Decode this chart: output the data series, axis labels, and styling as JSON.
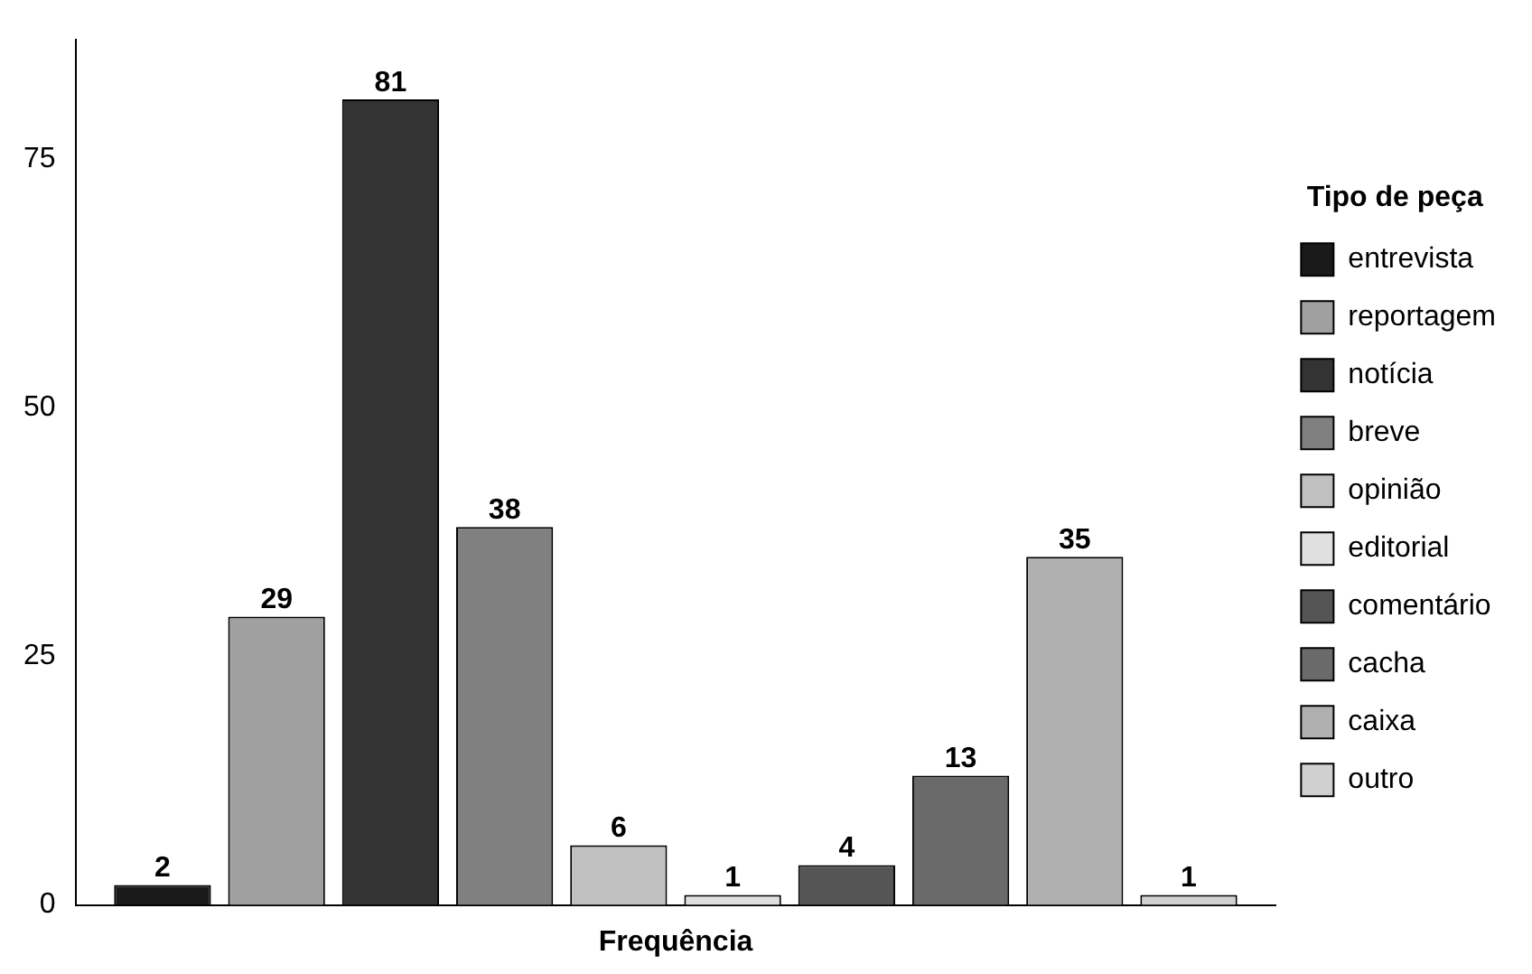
{
  "chart_data": {
    "type": "bar",
    "categories": [
      "Frequência"
    ],
    "legend_title": "Tipo de peça",
    "legend": "right",
    "grid": false,
    "data_labels": true,
    "ylim": [
      0,
      87
    ],
    "yticks": [
      0,
      25,
      50,
      75
    ],
    "series": [
      {
        "name": "entrevista",
        "color": "#1a1a1a",
        "values": [
          2
        ]
      },
      {
        "name": "reportagem",
        "color": "#a0a0a0",
        "values": [
          29
        ]
      },
      {
        "name": "notícia",
        "color": "#333333",
        "values": [
          81
        ]
      },
      {
        "name": "breve",
        "color": "#808080",
        "values": [
          38
        ]
      },
      {
        "name": "opinião",
        "color": "#c0c0c0",
        "values": [
          6
        ]
      },
      {
        "name": "editorial",
        "color": "#e0e0e0",
        "values": [
          1
        ]
      },
      {
        "name": "comentário",
        "color": "#555555",
        "values": [
          4
        ]
      },
      {
        "name": "cacha",
        "color": "#6a6a6a",
        "values": [
          13
        ]
      },
      {
        "name": "caixa",
        "color": "#b0b0b0",
        "values": [
          35
        ]
      },
      {
        "name": "outro",
        "color": "#d0d0d0",
        "values": [
          1
        ]
      }
    ]
  }
}
